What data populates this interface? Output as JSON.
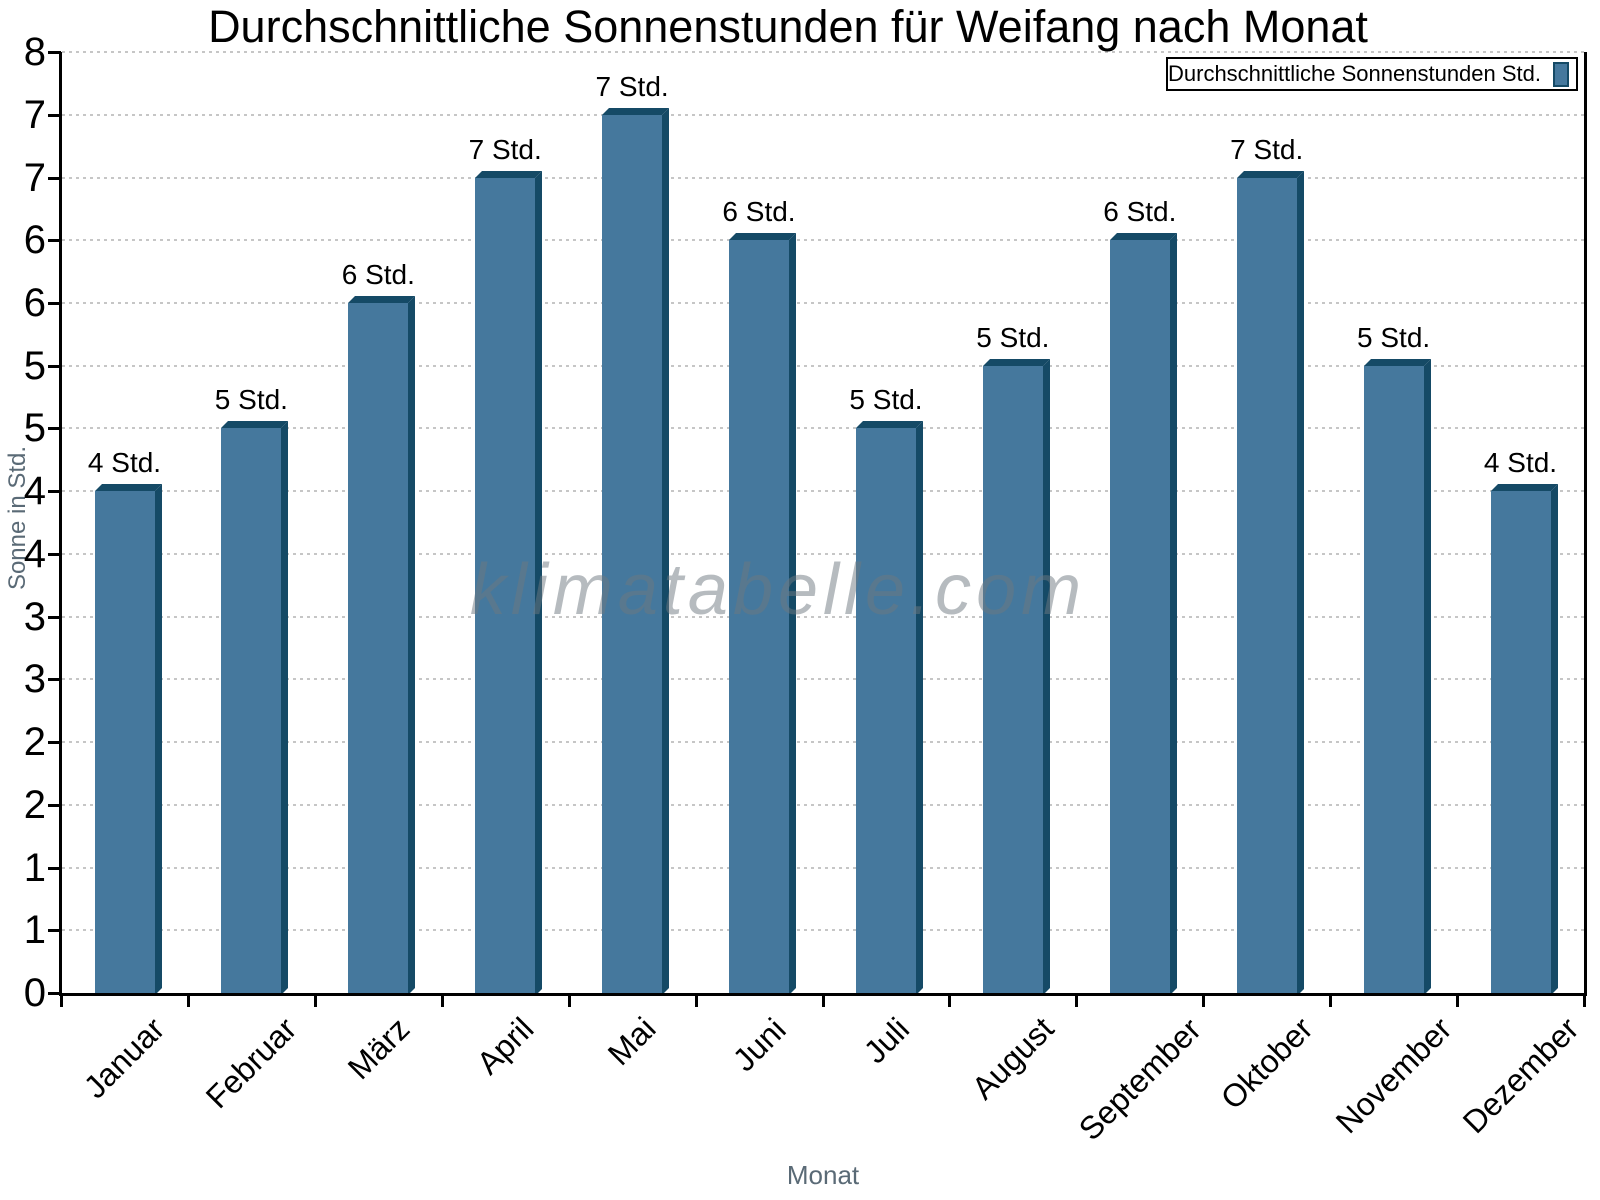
{
  "title": "Durchschnittliche Sonnenstunden für Weifang nach Monat",
  "watermark": "klimatabelle.com",
  "legend": {
    "label": "Durchschnittliche Sonnenstunden Std."
  },
  "chart_data": {
    "type": "bar",
    "title": "Durchschnittliche Sonnenstunden für Weifang nach Monat",
    "xlabel": "Monat",
    "ylabel": "Sonne in Std.",
    "categories": [
      "Januar",
      "Februar",
      "März",
      "April",
      "Mai",
      "Juni",
      "Juli",
      "August",
      "September",
      "Oktober",
      "November",
      "Dezember"
    ],
    "values": [
      4,
      4.5,
      5.5,
      6.5,
      7,
      6,
      4.5,
      5,
      6,
      6.5,
      5,
      4
    ],
    "bar_labels": [
      "4 Std.",
      "5 Std.",
      "6 Std.",
      "7 Std.",
      "7 Std.",
      "6 Std.",
      "5 Std.",
      "5 Std.",
      "6 Std.",
      "7 Std.",
      "5 Std.",
      "4 Std."
    ],
    "unit": "Std.",
    "ylim": [
      0,
      7.5
    ],
    "y_tick_step": 0.5,
    "y_ticks": [
      {
        "value": 0,
        "label": "0"
      },
      {
        "value": 0.5,
        "label": "1"
      },
      {
        "value": 1,
        "label": "1"
      },
      {
        "value": 1.5,
        "label": "2"
      },
      {
        "value": 2,
        "label": "2"
      },
      {
        "value": 2.5,
        "label": "3"
      },
      {
        "value": 3,
        "label": "3"
      },
      {
        "value": 3.5,
        "label": "4"
      },
      {
        "value": 4,
        "label": "4"
      },
      {
        "value": 4.5,
        "label": "5"
      },
      {
        "value": 5,
        "label": "5"
      },
      {
        "value": 5.5,
        "label": "6"
      },
      {
        "value": 6,
        "label": "6"
      },
      {
        "value": 6.5,
        "label": "7"
      },
      {
        "value": 7,
        "label": "7"
      },
      {
        "value": 7.5,
        "label": "8"
      }
    ],
    "grid": "horizontal-dashed",
    "legend_position": "top-right",
    "legend_label": "Durchschnittliche Sonnenstunden Std.",
    "colors": {
      "bar_fill": "#45789D",
      "bar_edge": "#154A66",
      "grid": "#c6c6c6",
      "axis": "#000000",
      "axis_title_text": "#5a6a76",
      "tick_text": "#000000",
      "watermark_text": "#9aa1a8"
    }
  }
}
